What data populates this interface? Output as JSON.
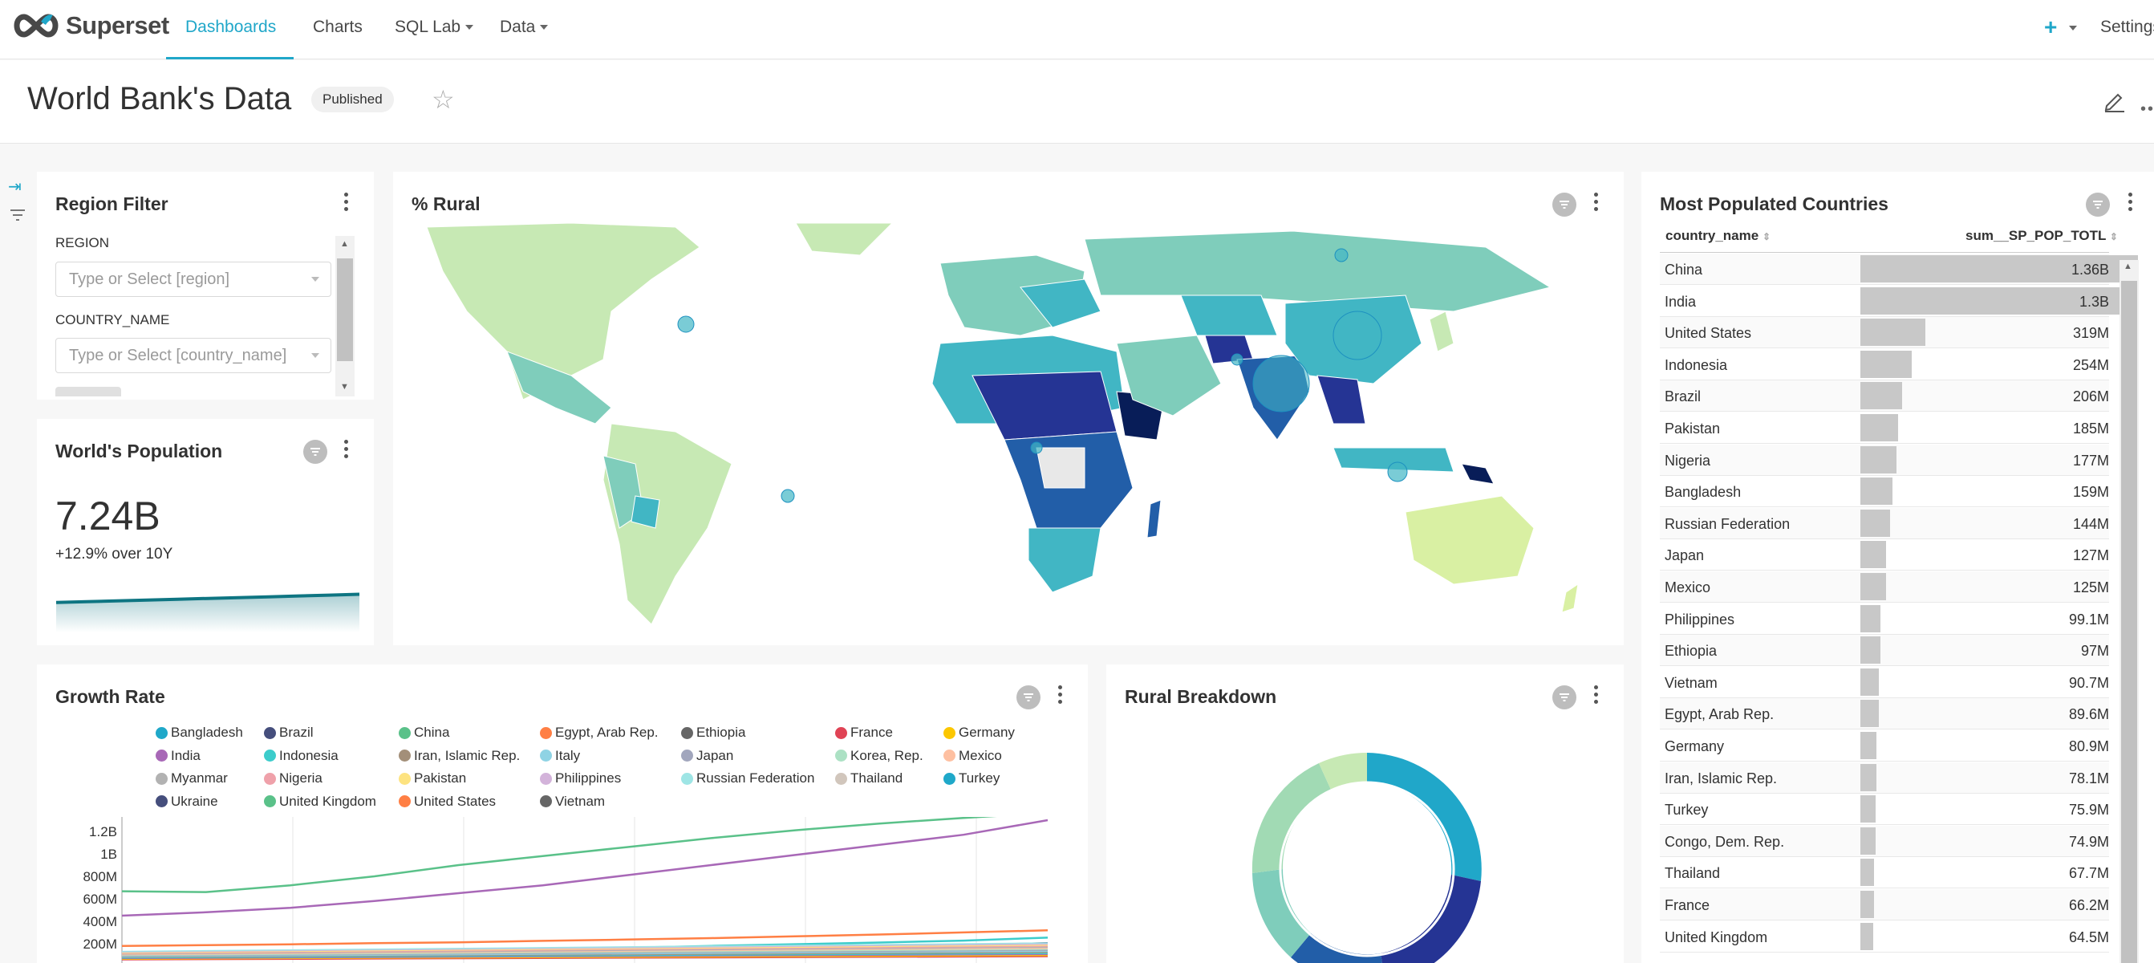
{
  "nav": {
    "brand": "Superset",
    "items": [
      {
        "label": "Dashboards",
        "active": true
      },
      {
        "label": "Charts",
        "active": false
      },
      {
        "label": "SQL Lab",
        "active": false
      },
      {
        "label": "Data",
        "active": false
      }
    ],
    "plus": "+",
    "settings": "Settings"
  },
  "dashboard": {
    "title": "World Bank's Data",
    "status_badge": "Published"
  },
  "region_filter": {
    "title": "Region Filter",
    "fields": [
      {
        "label": "REGION",
        "placeholder": "Type or Select [region]"
      },
      {
        "label": "COUNTRY_NAME",
        "placeholder": "Type or Select [country_name]"
      }
    ]
  },
  "world_population": {
    "title": "World's Population",
    "value": "7.24B",
    "subheader": "+12.9% over 10Y",
    "trend": [
      6.42,
      6.5,
      6.58,
      6.66,
      6.74,
      6.82,
      6.9,
      6.98,
      7.07,
      7.15,
      7.24
    ]
  },
  "rural_map": {
    "title": "% Rural"
  },
  "growth_rate": {
    "title": "Growth Rate",
    "legend": [
      {
        "name": "Bangladesh",
        "color": "#1FA8C9"
      },
      {
        "name": "Brazil",
        "color": "#454E7C"
      },
      {
        "name": "China",
        "color": "#5AC189"
      },
      {
        "name": "Egypt, Arab Rep.",
        "color": "#FF7F44"
      },
      {
        "name": "Ethiopia",
        "color": "#666666"
      },
      {
        "name": "France",
        "color": "#E04355"
      },
      {
        "name": "Germany",
        "color": "#FCC700"
      },
      {
        "name": "India",
        "color": "#A868B7"
      },
      {
        "name": "Indonesia",
        "color": "#3CCCCB"
      },
      {
        "name": "Iran, Islamic Rep.",
        "color": "#A38F79"
      },
      {
        "name": "Italy",
        "color": "#8FD3E4"
      },
      {
        "name": "Japan",
        "color": "#A1A6BD"
      },
      {
        "name": "Korea, Rep.",
        "color": "#ACE1C4"
      },
      {
        "name": "Mexico",
        "color": "#FEC0A1"
      },
      {
        "name": "Myanmar",
        "color": "#B2B2B2"
      },
      {
        "name": "Nigeria",
        "color": "#EFA1AA"
      },
      {
        "name": "Pakistan",
        "color": "#FDE380"
      },
      {
        "name": "Philippines",
        "color": "#D3B3DA"
      },
      {
        "name": "Russian Federation",
        "color": "#9EE5E5"
      },
      {
        "name": "Thailand",
        "color": "#D1C6BC"
      },
      {
        "name": "Turkey",
        "color": "#1FA8C9"
      },
      {
        "name": "Ukraine",
        "color": "#454E7C"
      },
      {
        "name": "United Kingdom",
        "color": "#5AC189"
      },
      {
        "name": "United States",
        "color": "#FF7F44"
      },
      {
        "name": "Vietnam",
        "color": "#666666"
      }
    ],
    "yticks": [
      "1.2B",
      "1B",
      "800M",
      "600M",
      "400M",
      "200M"
    ]
  },
  "chart_data": {
    "type": "line",
    "y_tick_labels": [
      "200M",
      "400M",
      "600M",
      "800M",
      "1B",
      "1.2B"
    ],
    "ylim": [
      0,
      1400000000
    ],
    "series": [
      {
        "name": "China",
        "values": [
          667000000,
          660000000,
          720000000,
          800000000,
          900000000,
          981000000,
          1060000000,
          1140000000,
          1210000000,
          1270000000,
          1320000000,
          1364000000
        ]
      },
      {
        "name": "India",
        "values": [
          450000000,
          480000000,
          520000000,
          580000000,
          650000000,
          720000000,
          810000000,
          900000000,
          990000000,
          1080000000,
          1170000000,
          1300000000
        ]
      },
      {
        "name": "United States",
        "values": [
          180000000,
          188000000,
          195000000,
          205000000,
          213000000,
          226000000,
          237000000,
          250000000,
          266000000,
          282000000,
          301000000,
          319000000
        ]
      },
      {
        "name": "Indonesia",
        "values": [
          88000000,
          96000000,
          107000000,
          120000000,
          134000000,
          148000000,
          164000000,
          181000000,
          196000000,
          211000000,
          228000000,
          254000000
        ]
      },
      {
        "name": "Brazil",
        "values": [
          72000000,
          81000000,
          92000000,
          104000000,
          114000000,
          122000000,
          137000000,
          150000000,
          162000000,
          175000000,
          187000000,
          206000000
        ]
      }
    ]
  },
  "rural_breakdown": {
    "title": "Rural Breakdown"
  },
  "most_populated": {
    "title": "Most Populated Countries",
    "columns": [
      "country_name",
      "sum__SP_POP_TOTL"
    ],
    "rows": [
      {
        "country": "China",
        "value": "1.36B",
        "fraction": 1.0
      },
      {
        "country": "India",
        "value": "1.3B",
        "fraction": 0.951
      },
      {
        "country": "United States",
        "value": "319M",
        "fraction": 0.234
      },
      {
        "country": "Indonesia",
        "value": "254M",
        "fraction": 0.186
      },
      {
        "country": "Brazil",
        "value": "206M",
        "fraction": 0.151
      },
      {
        "country": "Pakistan",
        "value": "185M",
        "fraction": 0.136
      },
      {
        "country": "Nigeria",
        "value": "177M",
        "fraction": 0.13
      },
      {
        "country": "Bangladesh",
        "value": "159M",
        "fraction": 0.117
      },
      {
        "country": "Russian Federation",
        "value": "144M",
        "fraction": 0.106
      },
      {
        "country": "Japan",
        "value": "127M",
        "fraction": 0.093
      },
      {
        "country": "Mexico",
        "value": "125M",
        "fraction": 0.092
      },
      {
        "country": "Philippines",
        "value": "99.1M",
        "fraction": 0.073
      },
      {
        "country": "Ethiopia",
        "value": "97M",
        "fraction": 0.071
      },
      {
        "country": "Vietnam",
        "value": "90.7M",
        "fraction": 0.067
      },
      {
        "country": "Egypt, Arab Rep.",
        "value": "89.6M",
        "fraction": 0.066
      },
      {
        "country": "Germany",
        "value": "80.9M",
        "fraction": 0.059
      },
      {
        "country": "Iran, Islamic Rep.",
        "value": "78.1M",
        "fraction": 0.057
      },
      {
        "country": "Turkey",
        "value": "75.9M",
        "fraction": 0.056
      },
      {
        "country": "Congo, Dem. Rep.",
        "value": "74.9M",
        "fraction": 0.055
      },
      {
        "country": "Thailand",
        "value": "67.7M",
        "fraction": 0.05
      },
      {
        "country": "France",
        "value": "66.2M",
        "fraction": 0.049
      },
      {
        "country": "United Kingdom",
        "value": "64.5M",
        "fraction": 0.047
      }
    ]
  },
  "colors": {
    "accent": "#20a7c9",
    "trendline": "#0e7582",
    "map_light": "#c7e9b4",
    "map_mid": "#41b6c4",
    "map_dark": "#253494"
  }
}
